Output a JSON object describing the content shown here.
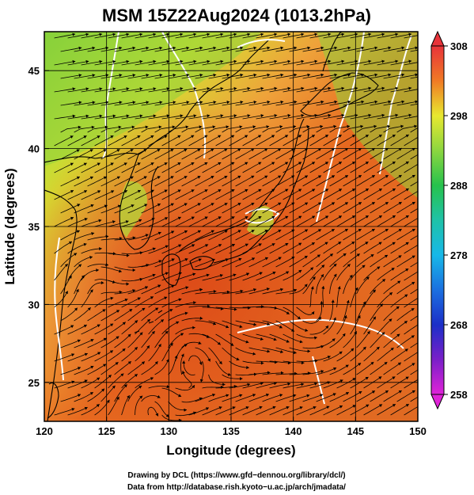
{
  "title": "MSM 15Z22Aug2024 (1013.2hPa)",
  "x_axis": {
    "label": "Longitude (degrees)",
    "range": [
      120,
      150
    ],
    "ticks": [
      "120",
      "125",
      "130",
      "135",
      "140",
      "145",
      "150"
    ]
  },
  "y_axis": {
    "label": "Latitude  (degrees)",
    "range": [
      22.5,
      47.5
    ],
    "ticks": [
      "25",
      "30",
      "35",
      "40",
      "45"
    ]
  },
  "colorbar": {
    "min": 258,
    "max": 308,
    "labels": [
      "308",
      "298",
      "288",
      "278",
      "268",
      "258"
    ],
    "colors": {
      "c308": "#e8333a",
      "c303": "#f07a25",
      "c298": "#e8e830",
      "c293": "#8cd640",
      "c288": "#27c24c",
      "c283": "#1fc2a8",
      "c278": "#17b8e8",
      "c273": "#1b70e0",
      "c268": "#1b2fc8",
      "c263": "#7a1fc8",
      "c258": "#e023d8"
    }
  },
  "map": {
    "grid": {
      "lon_step": 5,
      "lat_step": 5
    },
    "warm_color": "#e35a1f",
    "cool_color": "#90d43a",
    "contour_color": "#ffffff",
    "streamline_color": "#000000"
  },
  "credits": {
    "line1": "Drawing by DCL (https://www.gfd−dennou.org/library/dcl/)",
    "line2": "Data from http://database.rish.kyoto−u.ac.jp/arch/jmadata/"
  }
}
